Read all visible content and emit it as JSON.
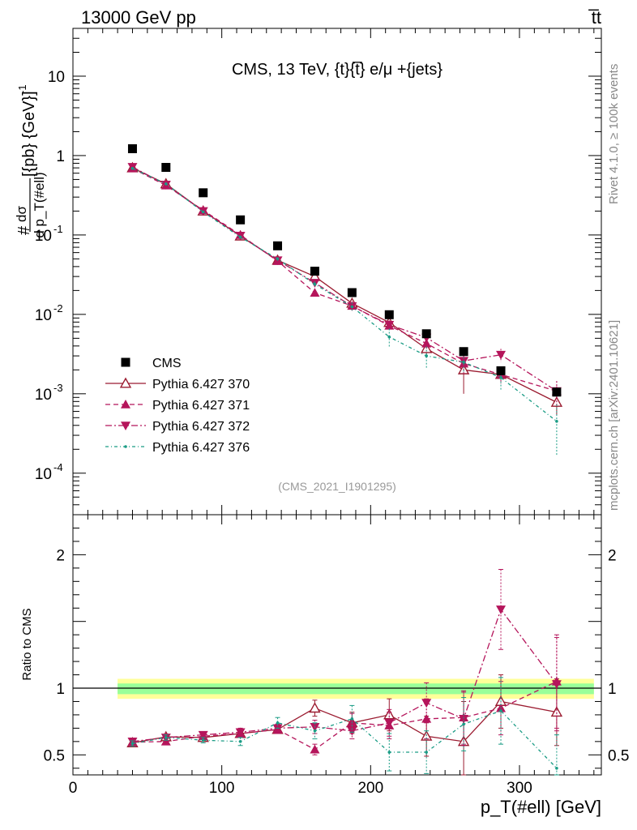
{
  "chart_data": {
    "type": "scatter",
    "energy_label": "13000 GeV pp",
    "process_label": "t̅t",
    "title": "CMS, 13 TeV, {t}{t̅} e/μ +{jets}",
    "reference": "(CMS_2021_I1901295)",
    "rivet_label": "Rivet 4.1.0, ≥ 100k events",
    "mcplots_label": "mcplots.cern.ch [arXiv:2401.10621]",
    "ylabel_top": "#",
    "ylabel_num": "dσ",
    "ylabel_den": "d p_T(#ell)",
    "ylabel_units": "[{pb} {GeV}]",
    "ylabel_units_exp": "-1",
    "ratio_ylabel": "Ratio to CMS",
    "xlabel": "p_T(#ell) [GeV]",
    "xlim": [
      0,
      355
    ],
    "ylim_main": [
      3e-05,
      40
    ],
    "ylim_ratio": [
      0.35,
      2.3
    ],
    "x_ticks": [
      0,
      100,
      200,
      300
    ],
    "x_tick_labels": [
      "0",
      "100",
      "200",
      "300"
    ],
    "y_ticks_main": [
      {
        "value": 10,
        "base": "10",
        "exp": ""
      },
      {
        "value": 1,
        "base": "1",
        "exp": ""
      },
      {
        "value": 0.1,
        "base": "10",
        "exp": "-1"
      },
      {
        "value": 0.01,
        "base": "10",
        "exp": "-2"
      },
      {
        "value": 0.001,
        "base": "10",
        "exp": "-3"
      },
      {
        "value": 0.0001,
        "base": "10",
        "exp": "-4"
      }
    ],
    "y_ticks_ratio": [
      {
        "value": 0.5,
        "label": "0.5"
      },
      {
        "value": 1,
        "label": "1"
      },
      {
        "value": 2,
        "label": "2"
      }
    ],
    "x": [
      40,
      62.5,
      87.5,
      112.5,
      137.5,
      162.5,
      187.5,
      212.5,
      237.5,
      262.5,
      287.5,
      325
    ],
    "band_range": [
      30,
      350
    ],
    "band_yellow": [
      0.92,
      1.07
    ],
    "band_green": [
      0.955,
      1.035
    ],
    "data": {
      "name": "CMS",
      "values": [
        1.22,
        0.71,
        0.34,
        0.155,
        0.073,
        0.035,
        0.0188,
        0.0099,
        0.0057,
        0.0034,
        0.00195,
        0.00105
      ]
    },
    "series": [
      {
        "name": "Pythia 6.427 370",
        "color": "#9b1b30",
        "marker": "triangle-up-open",
        "dash": "",
        "values": [
          0.7,
          0.44,
          0.2,
          0.097,
          0.048,
          0.03,
          0.0138,
          0.0079,
          0.0037,
          0.002,
          0.00175,
          0.00078
        ],
        "ratio": [
          0.59,
          0.635,
          0.63,
          0.66,
          0.69,
          0.85,
          0.74,
          0.8,
          0.64,
          0.6,
          0.9,
          0.82
        ],
        "ratio_err": [
          0.02,
          0.02,
          0.02,
          0.03,
          0.03,
          0.06,
          0.08,
          0.12,
          0.15,
          0.3,
          0.2,
          0.25
        ]
      },
      {
        "name": "Pythia 6.427 371",
        "color": "#b5155b",
        "marker": "triangle-up",
        "dash": "6,4",
        "values": [
          0.69,
          0.42,
          0.205,
          0.1,
          0.047,
          0.0187,
          0.0128,
          0.0072,
          0.0043,
          0.0024,
          0.00175,
          0.00108
        ],
        "ratio": [
          0.595,
          0.6,
          0.64,
          0.66,
          0.69,
          0.54,
          0.74,
          0.72,
          0.77,
          0.78,
          0.85,
          1.05
        ],
        "ratio_err": [
          0.02,
          0.02,
          0.02,
          0.03,
          0.03,
          0.04,
          0.07,
          0.1,
          0.15,
          0.2,
          0.2,
          0.35
        ]
      },
      {
        "name": "Pythia 6.427 372",
        "color": "#b5155b",
        "marker": "triangle-down",
        "dash": "8,3,2,3",
        "values": [
          0.72,
          0.43,
          0.2,
          0.098,
          0.048,
          0.025,
          0.0127,
          0.0074,
          0.0051,
          0.0026,
          0.0031,
          0.00108
        ],
        "ratio": [
          0.6,
          0.63,
          0.65,
          0.67,
          0.7,
          0.71,
          0.68,
          0.74,
          0.89,
          0.77,
          1.59,
          1.03
        ],
        "ratio_err": [
          0.02,
          0.02,
          0.02,
          0.03,
          0.03,
          0.05,
          0.06,
          0.1,
          0.15,
          0.2,
          0.3,
          0.35
        ]
      },
      {
        "name": "Pythia 6.427 376",
        "color": "#1a9c85",
        "marker": "dot",
        "dash": "4,3,1,3",
        "values": [
          0.69,
          0.44,
          0.195,
          0.094,
          0.05,
          0.024,
          0.0125,
          0.0052,
          0.003,
          0.0025,
          0.0016,
          0.00045
        ],
        "ratio": [
          0.585,
          0.63,
          0.61,
          0.6,
          0.74,
          0.68,
          0.77,
          0.52,
          0.52,
          0.73,
          0.83,
          0.4
        ],
        "ratio_err": [
          0.02,
          0.02,
          0.02,
          0.03,
          0.04,
          0.06,
          0.1,
          0.14,
          0.16,
          0.2,
          0.25,
          0.25
        ]
      }
    ],
    "legend_position": "bottom-left"
  }
}
